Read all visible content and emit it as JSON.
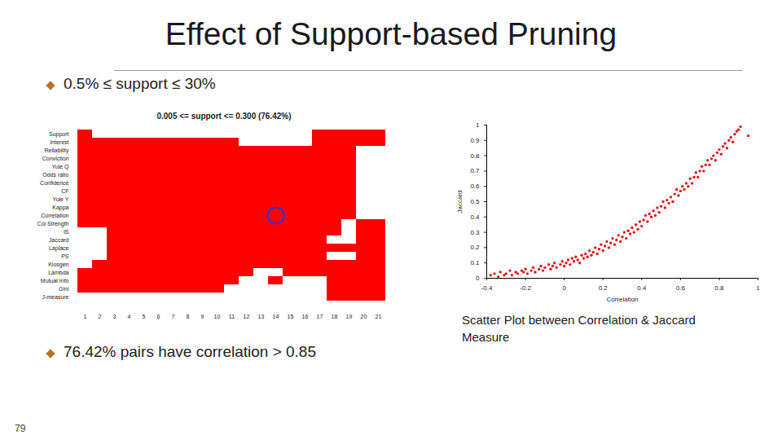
{
  "slide": {
    "title": "Effect of Support-based Pruning",
    "bullets": [
      "0.5% ≤ support ≤ 30%",
      "76.42% pairs have correlation > 0.85"
    ],
    "page_number": 79
  },
  "chart_data": [
    {
      "type": "heatmap",
      "title": "0.005 <= support <= 0.300 (76.42%)",
      "rows": [
        "Support",
        "Interest",
        "Reliability",
        "Conviction",
        "Yule Q",
        "Odds ratio",
        "Confidence",
        "CF",
        "Yule Y",
        "Kappa",
        "Correlation",
        "Col Strength",
        "IS",
        "Jaccard",
        "Laplace",
        "PS",
        "Klosgen",
        "Lambda",
        "Mutual Info",
        "Gini",
        "J-measure"
      ],
      "columns": [
        1,
        2,
        3,
        4,
        5,
        6,
        7,
        8,
        9,
        10,
        11,
        12,
        13,
        14,
        15,
        16,
        17,
        18,
        19,
        20,
        21
      ],
      "cells": [
        [
          1,
          0,
          0,
          0,
          0,
          0,
          0,
          0,
          0,
          0,
          0,
          0,
          0,
          0,
          0,
          0,
          1,
          1,
          1,
          1,
          1
        ],
        [
          1,
          1,
          1,
          1,
          1,
          1,
          1,
          1,
          1,
          1,
          1,
          0,
          0,
          0,
          0,
          0,
          1,
          1,
          1,
          1,
          1
        ],
        [
          1,
          1,
          1,
          1,
          1,
          1,
          1,
          1,
          1,
          1,
          1,
          1,
          1,
          1,
          1,
          1,
          1,
          1,
          1,
          0,
          0
        ],
        [
          1,
          1,
          1,
          1,
          1,
          1,
          1,
          1,
          1,
          1,
          1,
          1,
          1,
          1,
          1,
          1,
          1,
          1,
          1,
          0,
          0
        ],
        [
          1,
          1,
          1,
          1,
          1,
          1,
          1,
          1,
          1,
          1,
          1,
          1,
          1,
          1,
          1,
          1,
          1,
          1,
          1,
          0,
          0
        ],
        [
          1,
          1,
          1,
          1,
          1,
          1,
          1,
          1,
          1,
          1,
          1,
          1,
          1,
          1,
          1,
          1,
          1,
          1,
          1,
          0,
          0
        ],
        [
          1,
          1,
          1,
          1,
          1,
          1,
          1,
          1,
          1,
          1,
          1,
          1,
          1,
          1,
          1,
          1,
          1,
          1,
          1,
          0,
          0
        ],
        [
          1,
          1,
          1,
          1,
          1,
          1,
          1,
          1,
          1,
          1,
          1,
          1,
          1,
          1,
          1,
          1,
          1,
          1,
          1,
          0,
          0
        ],
        [
          1,
          1,
          1,
          1,
          1,
          1,
          1,
          1,
          1,
          1,
          1,
          1,
          1,
          1,
          1,
          1,
          1,
          1,
          1,
          0,
          0
        ],
        [
          1,
          1,
          1,
          1,
          1,
          1,
          1,
          1,
          1,
          1,
          1,
          1,
          1,
          1,
          1,
          1,
          1,
          1,
          1,
          0,
          0
        ],
        [
          1,
          1,
          1,
          1,
          1,
          1,
          1,
          1,
          1,
          1,
          1,
          1,
          1,
          1,
          1,
          1,
          1,
          1,
          1,
          0,
          0
        ],
        [
          1,
          1,
          1,
          1,
          1,
          1,
          1,
          1,
          1,
          1,
          1,
          1,
          1,
          1,
          1,
          1,
          1,
          1,
          0,
          1,
          1
        ],
        [
          0,
          0,
          1,
          1,
          1,
          1,
          1,
          1,
          1,
          1,
          1,
          1,
          1,
          1,
          1,
          1,
          1,
          1,
          0,
          1,
          1
        ],
        [
          0,
          0,
          1,
          1,
          1,
          1,
          1,
          1,
          1,
          1,
          1,
          1,
          1,
          1,
          1,
          1,
          1,
          0,
          0,
          1,
          1
        ],
        [
          0,
          0,
          1,
          1,
          1,
          1,
          1,
          1,
          1,
          1,
          1,
          1,
          1,
          1,
          1,
          1,
          1,
          1,
          1,
          1,
          1
        ],
        [
          0,
          0,
          1,
          1,
          1,
          1,
          1,
          1,
          1,
          1,
          1,
          1,
          1,
          1,
          1,
          1,
          1,
          0,
          0,
          1,
          1
        ],
        [
          0,
          1,
          1,
          1,
          1,
          1,
          1,
          1,
          1,
          1,
          1,
          1,
          1,
          1,
          1,
          1,
          1,
          1,
          1,
          1,
          1
        ],
        [
          1,
          1,
          1,
          1,
          1,
          1,
          1,
          1,
          1,
          1,
          1,
          1,
          0,
          0,
          1,
          1,
          1,
          1,
          1,
          1,
          1
        ],
        [
          1,
          1,
          1,
          1,
          1,
          1,
          1,
          1,
          1,
          1,
          1,
          0,
          0,
          1,
          0,
          0,
          0,
          1,
          1,
          1,
          1
        ],
        [
          1,
          1,
          1,
          1,
          1,
          1,
          1,
          1,
          1,
          1,
          0,
          0,
          0,
          0,
          0,
          0,
          0,
          1,
          1,
          1,
          1
        ],
        [
          0,
          0,
          0,
          0,
          0,
          0,
          0,
          0,
          0,
          0,
          0,
          0,
          0,
          0,
          0,
          0,
          0,
          1,
          1,
          1,
          1
        ]
      ],
      "color": "#ff0000",
      "highlight": {
        "row": "Correlation",
        "column": 14,
        "color": "#2a35d4"
      }
    },
    {
      "type": "scatter",
      "x_label": "Correlation",
      "y_label": "Jaccard",
      "caption": "Scatter Plot between Correlation & Jaccard Measure",
      "x": [
        -0.38,
        -0.36,
        -0.34,
        -0.33,
        -0.31,
        -0.3,
        -0.28,
        -0.27,
        -0.25,
        -0.24,
        -0.22,
        -0.21,
        -0.2,
        -0.19,
        -0.17,
        -0.16,
        -0.15,
        -0.13,
        -0.12,
        -0.11,
        -0.1,
        -0.08,
        -0.07,
        -0.06,
        -0.05,
        -0.04,
        -0.02,
        -0.01,
        0,
        0.01,
        0.02,
        0.03,
        0.04,
        0.05,
        0.06,
        0.07,
        0.08,
        0.09,
        0.1,
        0.11,
        0.12,
        0.13,
        0.14,
        0.15,
        0.16,
        0.17,
        0.18,
        0.19,
        0.2,
        0.21,
        0.22,
        0.23,
        0.24,
        0.25,
        0.26,
        0.27,
        0.28,
        0.29,
        0.3,
        0.31,
        0.32,
        0.33,
        0.34,
        0.35,
        0.36,
        0.37,
        0.38,
        0.39,
        0.4,
        0.41,
        0.42,
        0.43,
        0.44,
        0.45,
        0.46,
        0.47,
        0.48,
        0.49,
        0.5,
        0.51,
        0.52,
        0.53,
        0.54,
        0.55,
        0.56,
        0.57,
        0.58,
        0.59,
        0.6,
        0.61,
        0.62,
        0.63,
        0.64,
        0.65,
        0.66,
        0.67,
        0.68,
        0.69,
        0.7,
        0.71,
        0.72,
        0.73,
        0.74,
        0.75,
        0.76,
        0.77,
        0.78,
        0.79,
        0.8,
        0.81,
        0.82,
        0.83,
        0.84,
        0.85,
        0.86,
        0.87,
        0.88,
        0.89,
        0.9,
        0.91,
        0.95
      ],
      "values": [
        0.02,
        0.03,
        0.01,
        0.04,
        0.02,
        0.03,
        0.05,
        0.02,
        0.04,
        0.03,
        0.05,
        0.04,
        0.06,
        0.03,
        0.05,
        0.07,
        0.04,
        0.06,
        0.08,
        0.05,
        0.07,
        0.09,
        0.06,
        0.08,
        0.1,
        0.07,
        0.09,
        0.11,
        0.08,
        0.1,
        0.12,
        0.09,
        0.13,
        0.11,
        0.14,
        0.12,
        0.1,
        0.15,
        0.13,
        0.16,
        0.14,
        0.18,
        0.15,
        0.17,
        0.2,
        0.16,
        0.19,
        0.22,
        0.18,
        0.21,
        0.24,
        0.2,
        0.23,
        0.26,
        0.22,
        0.25,
        0.28,
        0.24,
        0.27,
        0.3,
        0.26,
        0.31,
        0.29,
        0.33,
        0.3,
        0.35,
        0.32,
        0.37,
        0.34,
        0.38,
        0.41,
        0.37,
        0.42,
        0.4,
        0.44,
        0.41,
        0.46,
        0.43,
        0.47,
        0.5,
        0.46,
        0.51,
        0.49,
        0.53,
        0.5,
        0.55,
        0.58,
        0.54,
        0.57,
        0.6,
        0.58,
        0.62,
        0.6,
        0.65,
        0.62,
        0.66,
        0.69,
        0.66,
        0.7,
        0.73,
        0.7,
        0.74,
        0.77,
        0.74,
        0.78,
        0.8,
        0.77,
        0.82,
        0.84,
        0.81,
        0.86,
        0.88,
        0.85,
        0.9,
        0.92,
        0.89,
        0.94,
        0.96,
        0.97,
        0.99,
        0.93
      ],
      "color": "#e3151b",
      "marker": "dot",
      "xlim": [
        -0.4,
        1
      ],
      "ylim": [
        0,
        1
      ],
      "xticks": [
        -0.4,
        -0.2,
        0,
        0.2,
        0.4,
        0.6,
        0.8,
        1
      ],
      "yticks": [
        0,
        0.1,
        0.2,
        0.3,
        0.4,
        0.5,
        0.6,
        0.7,
        0.8,
        0.9,
        1
      ]
    }
  ]
}
